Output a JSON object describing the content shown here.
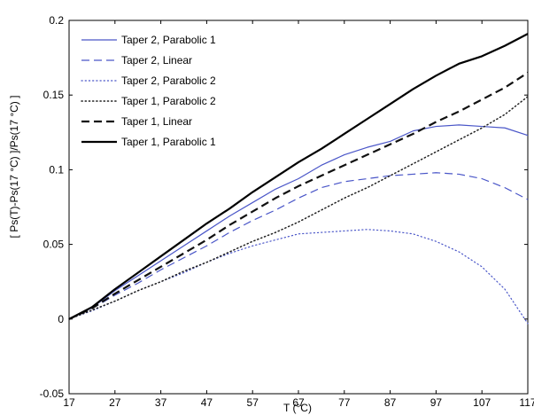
{
  "chart_data": {
    "type": "line",
    "title": "",
    "xlabel": "T (°C)",
    "ylabel": "[ Ps(T)-Ps(17 °C) ]/Ps(17 °C) ]",
    "xlim": [
      17,
      117
    ],
    "ylim": [
      -0.05,
      0.2
    ],
    "xticks": [
      17,
      27,
      37,
      47,
      57,
      67,
      77,
      87,
      97,
      107,
      117
    ],
    "yticks": [
      -0.05,
      0,
      0.05,
      0.1,
      0.15,
      0.2
    ],
    "ytick_labels": [
      "-0.05",
      "0",
      "0.05",
      "0.1",
      "0.15",
      "0.2"
    ],
    "grid": false,
    "legend_position": "top-left",
    "x": [
      17,
      22,
      27,
      32,
      37,
      42,
      47,
      52,
      57,
      62,
      67,
      72,
      77,
      82,
      87,
      92,
      97,
      102,
      107,
      112,
      117
    ],
    "series": [
      {
        "name": "Taper 2, Parabolic 1",
        "color": "#4a56c8",
        "dash": "solid",
        "values": [
          0,
          0.0075,
          0.019,
          0.029,
          0.039,
          0.049,
          0.059,
          0.069,
          0.078,
          0.087,
          0.094,
          0.103,
          0.11,
          0.115,
          0.119,
          0.126,
          0.129,
          0.13,
          0.129,
          0.128,
          0.123
        ]
      },
      {
        "name": "Taper 2, Linear",
        "color": "#4a56c8",
        "dash": "dashed",
        "values": [
          0,
          0.007,
          0.016,
          0.024,
          0.033,
          0.041,
          0.049,
          0.058,
          0.066,
          0.073,
          0.081,
          0.088,
          0.092,
          0.094,
          0.096,
          0.097,
          0.098,
          0.097,
          0.094,
          0.088,
          0.08
        ]
      },
      {
        "name": "Taper 2, Parabolic 2",
        "color": "#4a56c8",
        "dash": "dotted",
        "values": [
          0,
          0.0055,
          0.012,
          0.019,
          0.025,
          0.031,
          0.038,
          0.044,
          0.049,
          0.053,
          0.057,
          0.058,
          0.059,
          0.06,
          0.059,
          0.057,
          0.052,
          0.045,
          0.035,
          0.02,
          -0.003
        ]
      },
      {
        "name": "Taper 1, Parabolic 2",
        "color": "#222222",
        "dash": "dotted",
        "values": [
          0,
          0.006,
          0.012,
          0.019,
          0.025,
          0.032,
          0.038,
          0.045,
          0.052,
          0.058,
          0.065,
          0.073,
          0.081,
          0.088,
          0.096,
          0.104,
          0.112,
          0.12,
          0.128,
          0.137,
          0.149
        ]
      },
      {
        "name": "Taper 1, Linear",
        "color": "#111111",
        "dash": "dashed",
        "values": [
          0,
          0.0072,
          0.017,
          0.026,
          0.035,
          0.044,
          0.053,
          0.063,
          0.072,
          0.081,
          0.089,
          0.096,
          0.103,
          0.11,
          0.117,
          0.124,
          0.132,
          0.139,
          0.147,
          0.155,
          0.165
        ]
      },
      {
        "name": "Taper 1, Parabolic 1",
        "color": "#000000",
        "dash": "solid",
        "values": [
          0,
          0.008,
          0.02,
          0.031,
          0.042,
          0.053,
          0.064,
          0.074,
          0.085,
          0.095,
          0.105,
          0.114,
          0.124,
          0.134,
          0.144,
          0.154,
          0.163,
          0.171,
          0.176,
          0.183,
          0.191
        ]
      }
    ]
  }
}
